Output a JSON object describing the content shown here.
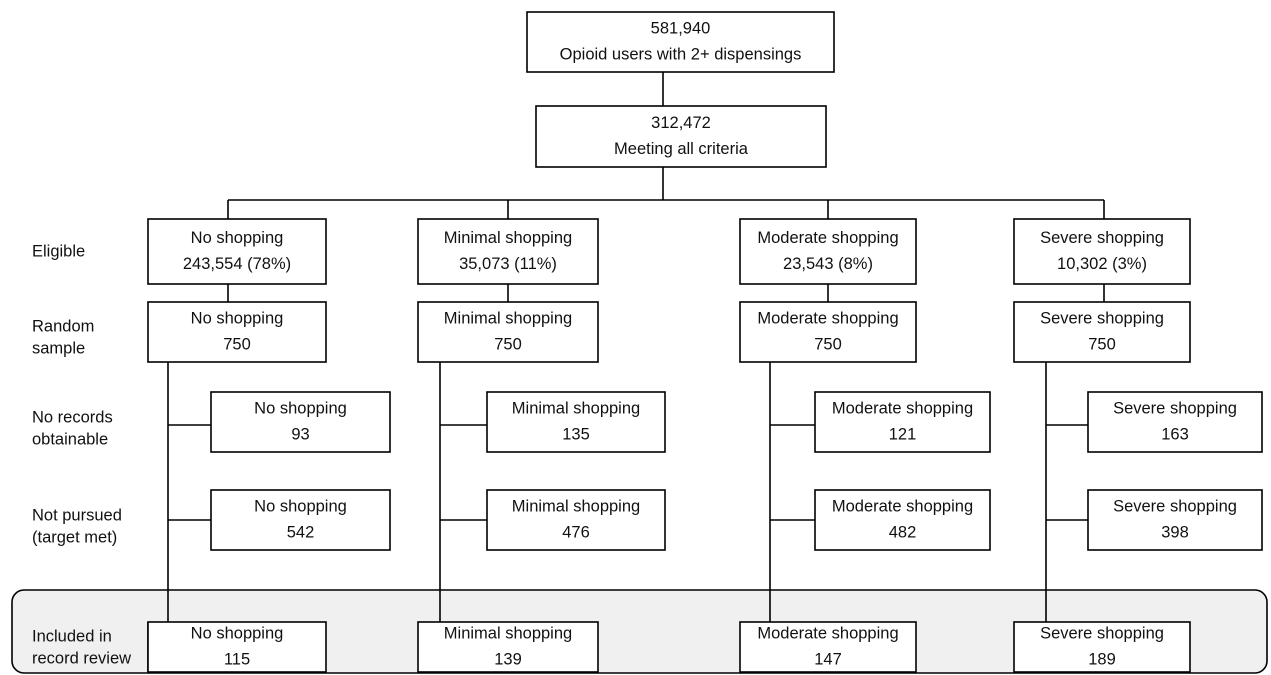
{
  "top": {
    "lines": [
      "581,940",
      "Opioid users with 2+ dispensings"
    ]
  },
  "criteria": {
    "lines": [
      "312,472",
      "Meeting all criteria"
    ]
  },
  "row_labels": [
    [
      "Eligible"
    ],
    [
      "Random",
      "sample"
    ],
    [
      "No records",
      "obtainable"
    ],
    [
      "Not pursued",
      "(target met)"
    ],
    [
      "Included in",
      "record review"
    ]
  ],
  "columns": [
    {
      "eligible": [
        "No shopping",
        "243,554 (78%)"
      ],
      "sample": [
        "No shopping",
        "750"
      ],
      "no_records": [
        "No shopping",
        "93"
      ],
      "not_pursued": [
        "No shopping",
        "542"
      ],
      "included": [
        "No shopping",
        "115"
      ]
    },
    {
      "eligible": [
        "Minimal shopping",
        "35,073 (11%)"
      ],
      "sample": [
        "Minimal shopping",
        "750"
      ],
      "no_records": [
        "Minimal shopping",
        "135"
      ],
      "not_pursued": [
        "Minimal shopping",
        "476"
      ],
      "included": [
        "Minimal shopping",
        "139"
      ]
    },
    {
      "eligible": [
        "Moderate shopping",
        "23,543 (8%)"
      ],
      "sample": [
        "Moderate shopping",
        "750"
      ],
      "no_records": [
        "Moderate shopping",
        "121"
      ],
      "not_pursued": [
        "Moderate shopping",
        "482"
      ],
      "included": [
        "Moderate shopping",
        "147"
      ]
    },
    {
      "eligible": [
        "Severe shopping",
        "10,302 (3%)"
      ],
      "sample": [
        "Severe shopping",
        "750"
      ],
      "no_records": [
        "Severe shopping",
        "163"
      ],
      "not_pursued": [
        "Severe shopping",
        "398"
      ],
      "included": [
        "Severe shopping",
        "189"
      ]
    }
  ]
}
